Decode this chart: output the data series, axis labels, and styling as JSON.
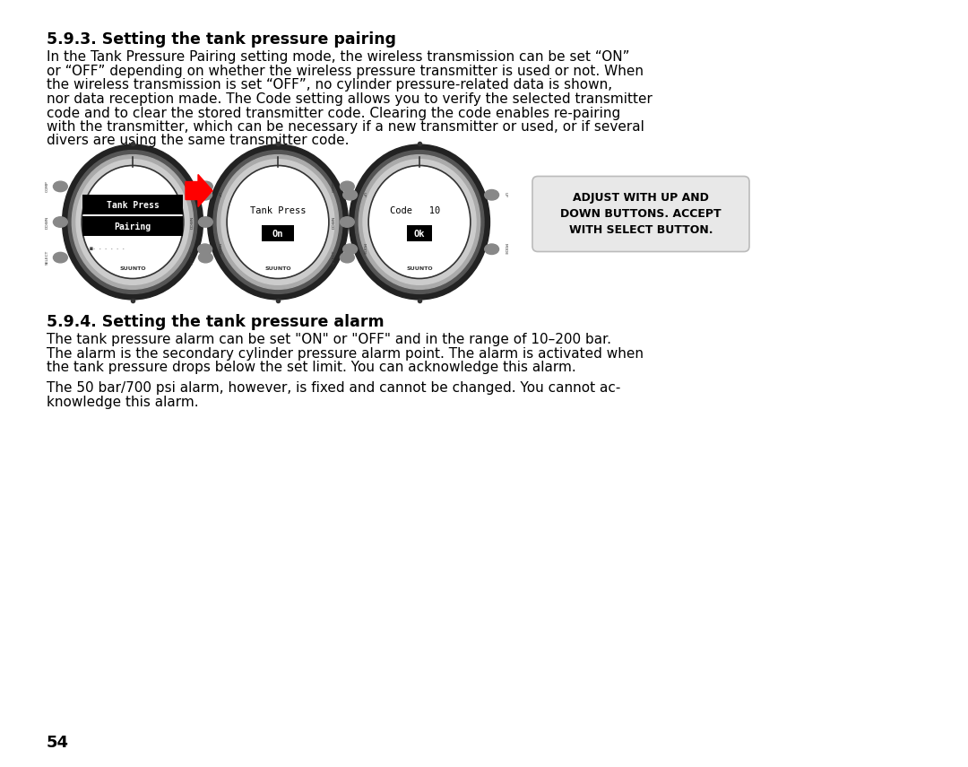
{
  "bg_color": "#ffffff",
  "title1": "5.9.3. Setting the tank pressure pairing",
  "para1": "In the Tank Pressure Pairing setting mode, the wireless transmission can be set “ON”\nor “OFF” depending on whether the wireless pressure transmitter is used or not. When\nthe wireless transmission is set “OFF”, no cylinder pressure-related data is shown,\nnor data reception made. The Code setting allows you to verify the selected transmitter\ncode and to clear the stored transmitter code. Clearing the code enables re-pairing\nwith the transmitter, which can be necessary if a new transmitter or used, or if several\ndivers are using the same transmitter code.",
  "title2": "5.9.4. Setting the tank pressure alarm",
  "para2": "The tank pressure alarm can be set \"ON\" or \"OFF\" and in the range of 10–200 bar.\nThe alarm is the secondary cylinder pressure alarm point. The alarm is activated when\nthe tank pressure drops below the set limit. You can acknowledge this alarm.",
  "para3": "The 50 bar/700 psi alarm, however, is fixed and cannot be changed. You cannot ac-\nknowledge this alarm.",
  "page_num": "54",
  "callout_text": "ADJUST WITH UP AND\nDOWN BUTTONS. ACCEPT\nWITH SELECT BUTTON.",
  "watch1_line1": "Tank Press",
  "watch1_line2": "Pairing",
  "watch2_line1": "Tank Press",
  "watch2_line2": "On",
  "watch3_line1": "Code   10",
  "watch3_line2": "Ok"
}
